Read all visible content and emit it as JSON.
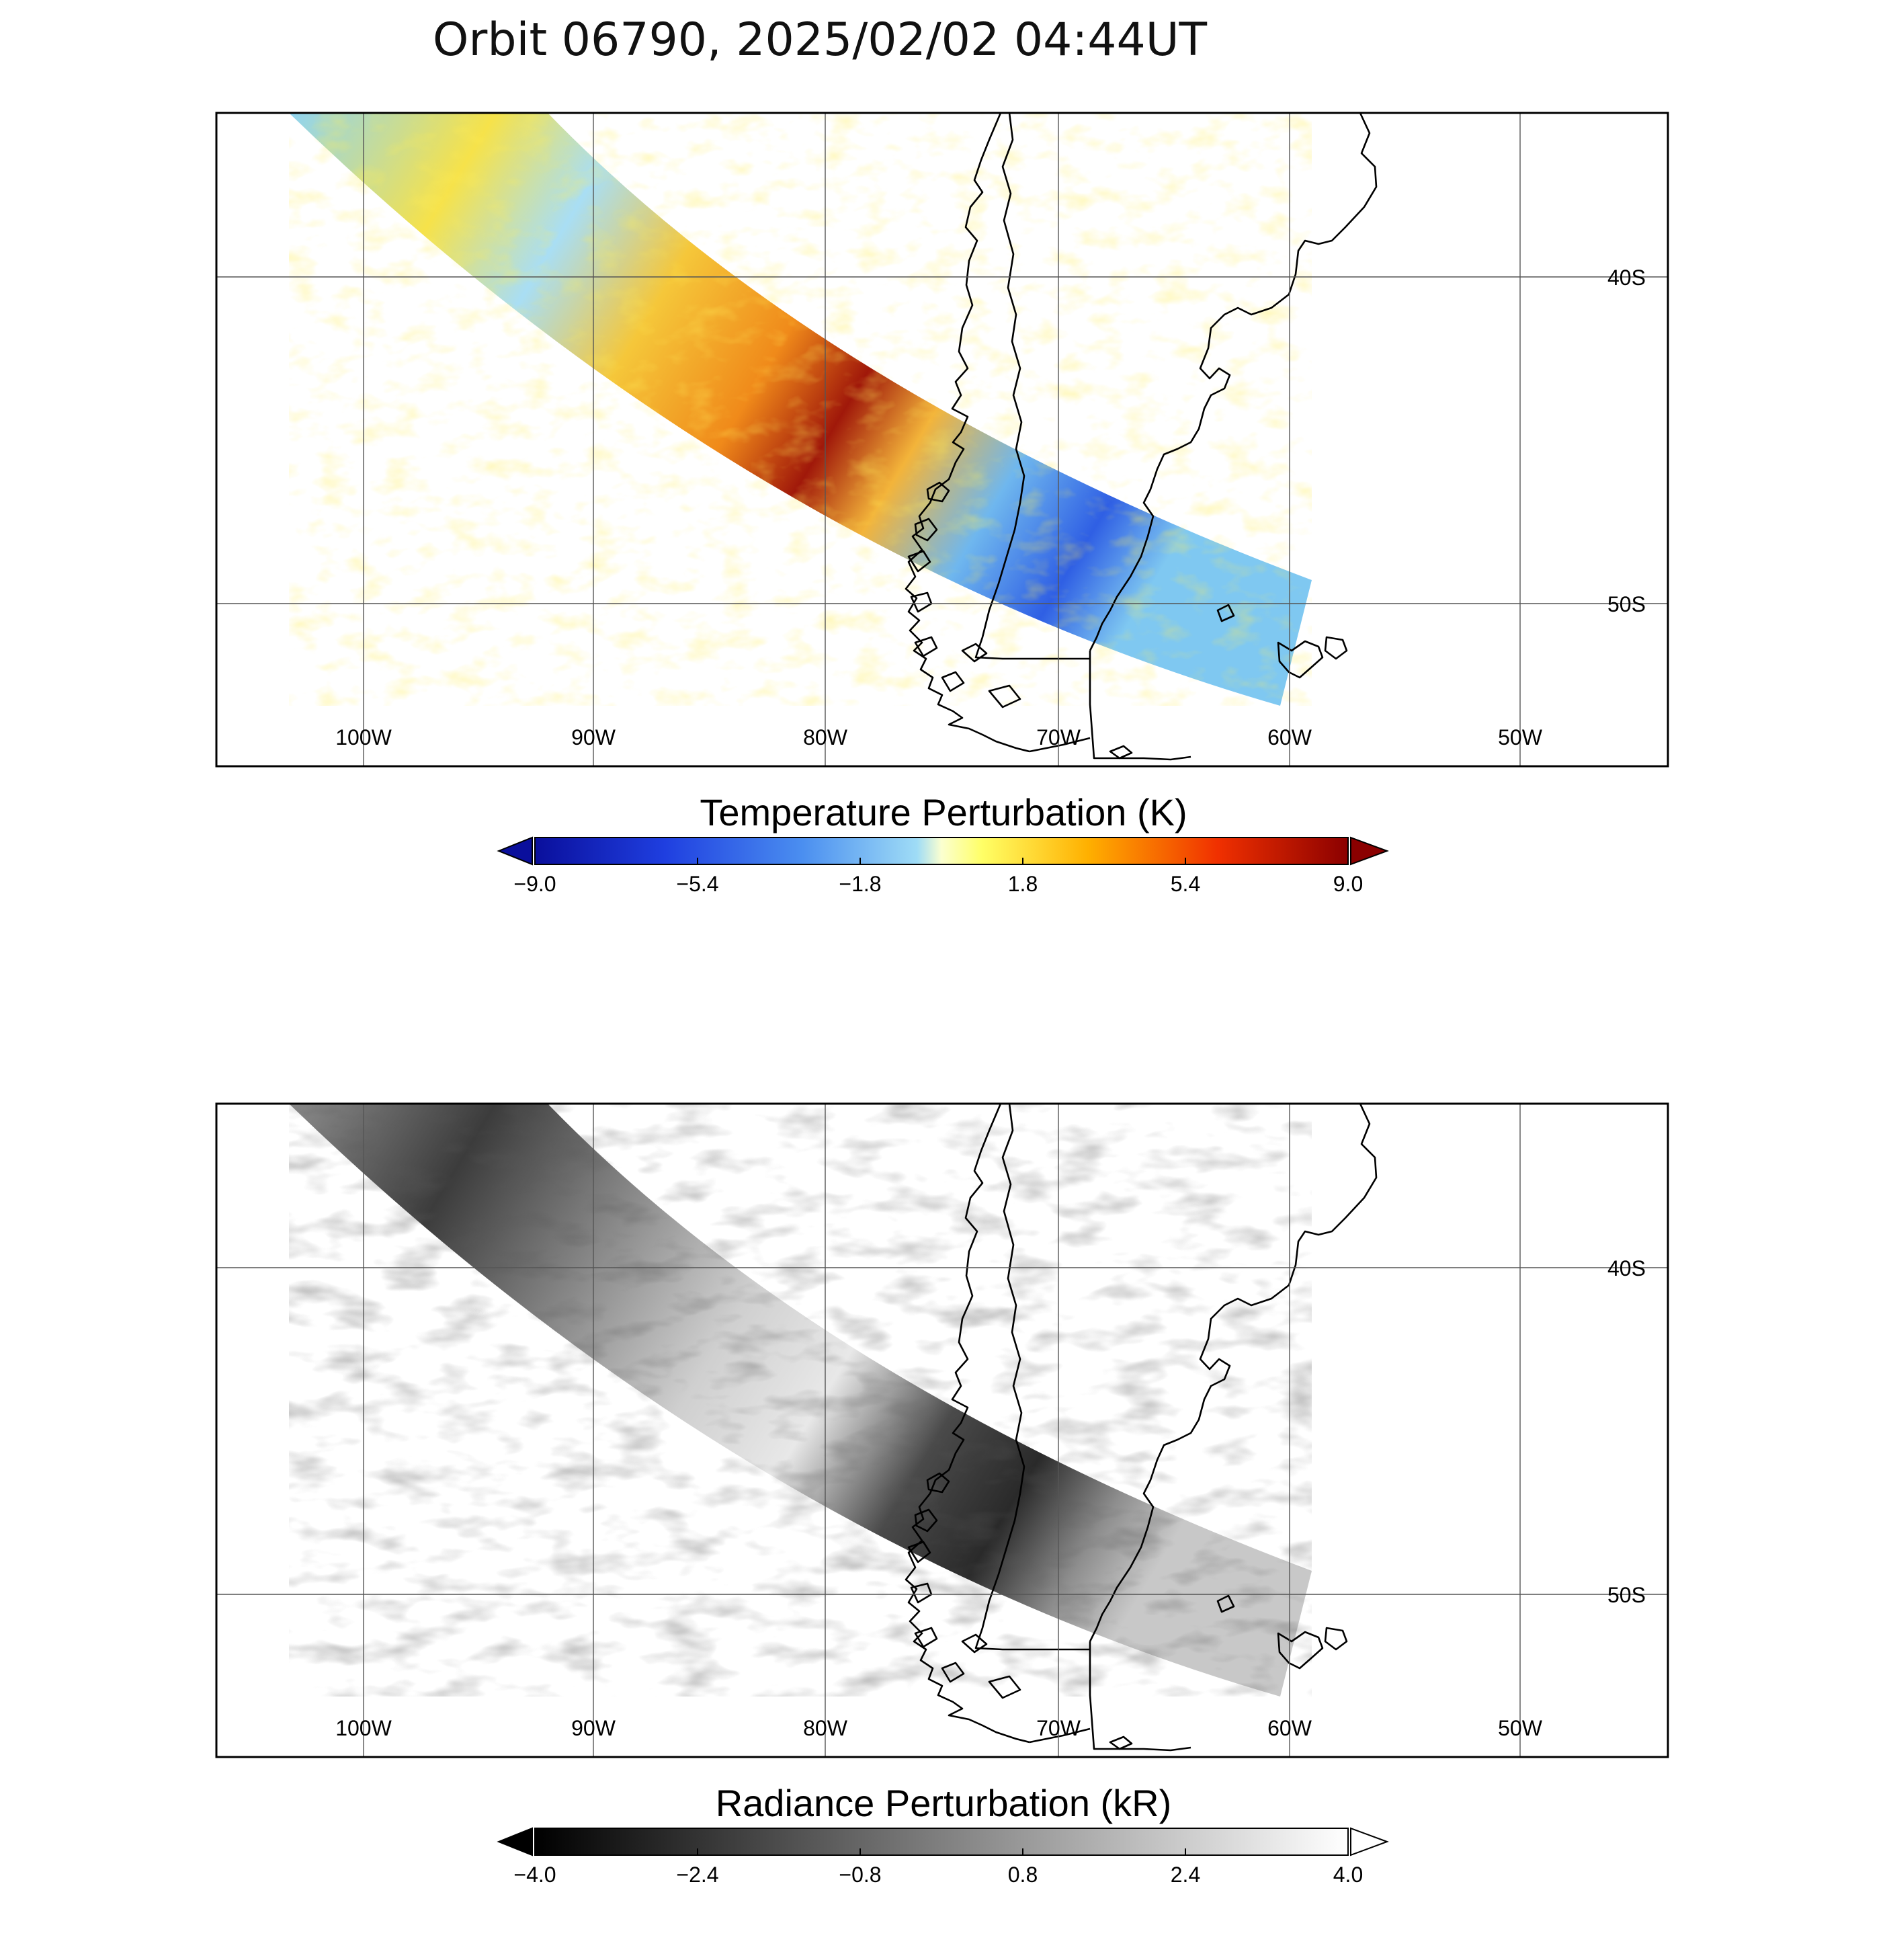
{
  "title": "Orbit 06790, 2025/02/02 04:44UT",
  "panels": [
    {
      "id": "temperature",
      "lon_ticks": [
        "100W",
        "90W",
        "80W",
        "70W",
        "60W",
        "50W"
      ],
      "lat_ticks": [
        "40S",
        "50S"
      ],
      "colorbar": {
        "title": "Temperature Perturbation (K)",
        "ticks": [
          "−9.0",
          "−5.4",
          "−1.8",
          "1.8",
          "5.4",
          "9.0"
        ],
        "range": [
          -9.0,
          9.0
        ],
        "colors": [
          "#0a0f9c",
          "#1f3fe0",
          "#4b8ff0",
          "#9fdcf6",
          "#ffff66",
          "#ffb000",
          "#f03000",
          "#8b0000"
        ]
      }
    },
    {
      "id": "radiance",
      "lon_ticks": [
        "100W",
        "90W",
        "80W",
        "70W",
        "60W",
        "50W"
      ],
      "lat_ticks": [
        "40S",
        "50S"
      ],
      "colorbar": {
        "title": "Radiance Perturbation (kR)",
        "ticks": [
          "−4.0",
          "−2.4",
          "−0.8",
          "0.8",
          "2.4",
          "4.0"
        ],
        "range": [
          -4.0,
          4.0
        ],
        "colors": [
          "#000000",
          "#ffffff"
        ]
      }
    }
  ]
}
